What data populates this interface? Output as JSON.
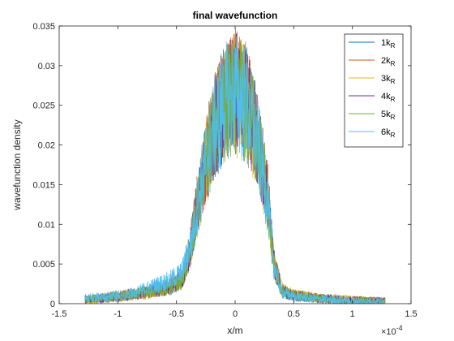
{
  "chart_data": {
    "type": "line",
    "title": "final wavefunction",
    "xlabel": "x/m",
    "ylabel": "wavefunction density",
    "x_exponent_label": "×10",
    "x_exponent_power": "-4",
    "xlim": [
      -1.5,
      1.5
    ],
    "ylim": [
      0,
      0.035
    ],
    "xticks": [
      -1.5,
      -1,
      -0.5,
      0,
      0.5,
      1,
      1.5
    ],
    "xtick_labels": [
      "-1.5",
      "-1",
      "-0.5",
      "0",
      "0.5",
      "1",
      "1.5"
    ],
    "yticks": [
      0,
      0.005,
      0.01,
      0.015,
      0.02,
      0.025,
      0.03,
      0.035
    ],
    "ytick_labels": [
      "0",
      "0.005",
      "0.01",
      "0.015",
      "0.02",
      "0.025",
      "0.03",
      "0.035"
    ],
    "legend_position": "top-right",
    "grid": false,
    "series": [
      {
        "name": "1k",
        "sub": "R",
        "color": "#0072BD",
        "x": [
          -1.28,
          -1.1,
          -0.9,
          -0.7,
          -0.55,
          -0.45,
          -0.38,
          -0.3,
          -0.2,
          -0.1,
          0,
          0.1,
          0.2,
          0.28,
          0.33,
          0.4,
          0.5,
          0.7,
          0.9,
          1.1,
          1.28
        ],
        "y": [
          0.0005,
          0.0007,
          0.001,
          0.0015,
          0.002,
          0.003,
          0.007,
          0.014,
          0.021,
          0.025,
          0.0265,
          0.025,
          0.02,
          0.013,
          0.005,
          0.0015,
          0.001,
          0.0007,
          0.0005,
          0.0004,
          0.0003
        ]
      },
      {
        "name": "2k",
        "sub": "R",
        "color": "#D95319",
        "x": [
          -1.28,
          -1.1,
          -0.9,
          -0.7,
          -0.55,
          -0.45,
          -0.38,
          -0.3,
          -0.2,
          -0.1,
          0,
          0.1,
          0.2,
          0.28,
          0.33,
          0.4,
          0.5,
          0.7,
          0.9,
          1.1,
          1.28
        ],
        "y": [
          0.0005,
          0.0008,
          0.0011,
          0.0016,
          0.0022,
          0.0032,
          0.0075,
          0.0145,
          0.0215,
          0.0255,
          0.027,
          0.0255,
          0.0205,
          0.0135,
          0.0055,
          0.0017,
          0.0011,
          0.0007,
          0.0005,
          0.0004,
          0.0003
        ]
      },
      {
        "name": "3k",
        "sub": "R",
        "color": "#EDB120",
        "x": [
          -1.28,
          -1.1,
          -0.9,
          -0.7,
          -0.55,
          -0.45,
          -0.38,
          -0.3,
          -0.2,
          -0.1,
          0,
          0.1,
          0.2,
          0.28,
          0.33,
          0.4,
          0.5,
          0.7,
          0.9,
          1.1,
          1.28
        ],
        "y": [
          0.0004,
          0.0006,
          0.001,
          0.0014,
          0.002,
          0.003,
          0.0068,
          0.0138,
          0.0208,
          0.0248,
          0.0262,
          0.0248,
          0.0198,
          0.0128,
          0.005,
          0.0018,
          0.0012,
          0.0008,
          0.0006,
          0.0004,
          0.0003
        ]
      },
      {
        "name": "4k",
        "sub": "R",
        "color": "#7E2F8E",
        "x": [
          -1.28,
          -1.1,
          -0.9,
          -0.7,
          -0.55,
          -0.45,
          -0.38,
          -0.3,
          -0.2,
          -0.1,
          0,
          0.1,
          0.2,
          0.28,
          0.33,
          0.4,
          0.5,
          0.7,
          0.9,
          1.1,
          1.28
        ],
        "y": [
          0.0005,
          0.0007,
          0.0012,
          0.0016,
          0.0021,
          0.0031,
          0.0072,
          0.0142,
          0.0212,
          0.0252,
          0.0267,
          0.0252,
          0.0202,
          0.0132,
          0.0052,
          0.0016,
          0.001,
          0.0007,
          0.0005,
          0.0004,
          0.0003
        ]
      },
      {
        "name": "5k",
        "sub": "R",
        "color": "#77AC30",
        "x": [
          -1.28,
          -1.1,
          -0.9,
          -0.7,
          -0.55,
          -0.45,
          -0.38,
          -0.3,
          -0.2,
          -0.1,
          0,
          0.1,
          0.2,
          0.28,
          0.33,
          0.4,
          0.5,
          0.7,
          0.9,
          1.1,
          1.28
        ],
        "y": [
          0.0005,
          0.0008,
          0.0011,
          0.0015,
          0.0021,
          0.0031,
          0.007,
          0.014,
          0.021,
          0.025,
          0.0265,
          0.025,
          0.02,
          0.013,
          0.0052,
          0.0016,
          0.0011,
          0.0007,
          0.0005,
          0.0004,
          0.0003
        ]
      },
      {
        "name": "6k",
        "sub": "R",
        "color": "#4DBEEE",
        "x": [
          -1.28,
          -1.1,
          -0.9,
          -0.7,
          -0.55,
          -0.45,
          -0.38,
          -0.3,
          -0.2,
          -0.1,
          0,
          0.1,
          0.2,
          0.28,
          0.33,
          0.4,
          0.5,
          0.7,
          0.9,
          1.1,
          1.28
        ],
        "y": [
          0.0007,
          0.0009,
          0.0012,
          0.0022,
          0.003,
          0.004,
          0.0075,
          0.0145,
          0.0212,
          0.0252,
          0.0266,
          0.025,
          0.0198,
          0.0125,
          0.0048,
          0.0014,
          0.0009,
          0.0006,
          0.0004,
          0.0003,
          0.0003
        ]
      }
    ]
  }
}
